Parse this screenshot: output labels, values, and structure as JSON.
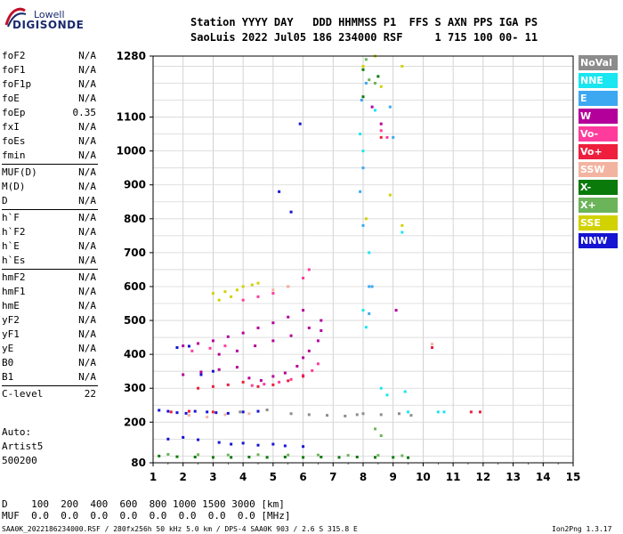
{
  "logo": {
    "line1": "Lowell",
    "line2": "DIGISONDE"
  },
  "header": {
    "line1": "Station YYYY DAY   DDD HHMMSS P1  FFS S AXN PPS IGA PS",
    "line2": "SaoLuis 2022 Jul05 186 234000 RSF     1 715 100 00- 11"
  },
  "params": [
    {
      "name": "foF2",
      "value": "N/A"
    },
    {
      "name": "foF1",
      "value": "N/A"
    },
    {
      "name": "foF1p",
      "value": "N/A"
    },
    {
      "name": "foE",
      "value": "N/A"
    },
    {
      "name": "foEp",
      "value": "0.35"
    },
    {
      "name": "fxI",
      "value": "N/A"
    },
    {
      "name": "foEs",
      "value": "N/A"
    },
    {
      "name": "fmin",
      "value": "N/A"
    },
    {
      "name": "MUF(D)",
      "value": "N/A",
      "sep": true
    },
    {
      "name": "M(D)",
      "value": "N/A"
    },
    {
      "name": "D",
      "value": "N/A"
    },
    {
      "name": "h`F",
      "value": "N/A",
      "sep": true
    },
    {
      "name": "h`F2",
      "value": "N/A"
    },
    {
      "name": "h`E",
      "value": "N/A"
    },
    {
      "name": "h`Es",
      "value": "N/A"
    },
    {
      "name": "hmF2",
      "value": "N/A",
      "sep": true
    },
    {
      "name": "hmF1",
      "value": "N/A"
    },
    {
      "name": "hmE",
      "value": "N/A"
    },
    {
      "name": "yF2",
      "value": "N/A"
    },
    {
      "name": "yF1",
      "value": "N/A"
    },
    {
      "name": "yE",
      "value": "N/A"
    },
    {
      "name": "B0",
      "value": "N/A"
    },
    {
      "name": "B1",
      "value": "N/A"
    },
    {
      "name": "C-level",
      "value": "22",
      "sep": true
    }
  ],
  "auto": {
    "line1": "Auto:",
    "line2": "Artist5",
    "line3": "500200"
  },
  "legend": [
    {
      "label": "NoVal",
      "color": "#8c8c8c"
    },
    {
      "label": "NNE",
      "color": "#19e6f0"
    },
    {
      "label": "E",
      "color": "#3ca8f2"
    },
    {
      "label": "W",
      "color": "#b4009a"
    },
    {
      "label": "Vo-",
      "color": "#ff3c9c"
    },
    {
      "label": "Vo+",
      "color": "#ee1e3c"
    },
    {
      "label": "SSW",
      "color": "#f2b4a0"
    },
    {
      "label": "X-",
      "color": "#0a7a0a"
    },
    {
      "label": "X+",
      "color": "#6cb45a"
    },
    {
      "label": "SSE",
      "color": "#d2d200"
    },
    {
      "label": "NNW",
      "color": "#1414d2"
    }
  ],
  "table": {
    "row1": "D    100  200  400  600  800 1000 1500 3000 [km]",
    "row2": "MUF  0.0  0.0  0.0  0.0  0.0  0.0  0.0  0.0 [MHz]"
  },
  "footer": {
    "left": "SAA0K_2022186234000.RSF / 280fx256h 50 kHz 5.0 km / DPS-4 SAA0K 903 / 2.6 S 315.8 E",
    "right": "Ion2Png 1.3.17"
  },
  "chart_data": {
    "type": "scatter",
    "title": "",
    "xlabel": "",
    "ylabel": "",
    "xlim": [
      1,
      15
    ],
    "ylim": [
      80,
      1280
    ],
    "x_ticks": [
      1,
      2,
      3,
      4,
      5,
      6,
      7,
      8,
      9,
      10,
      11,
      12,
      13,
      14,
      15
    ],
    "y_ticks": [
      80,
      200,
      300,
      400,
      500,
      600,
      700,
      800,
      900,
      1000,
      1100,
      1280
    ],
    "grid": true,
    "legend_position": "right",
    "series": [
      {
        "name": "NNW",
        "color": "#1414d2",
        "points": [
          [
            1.2,
            235
          ],
          [
            1.5,
            232
          ],
          [
            1.8,
            228
          ],
          [
            2.1,
            226
          ],
          [
            2.4,
            232
          ],
          [
            2.8,
            230
          ],
          [
            3.1,
            228
          ],
          [
            3.5,
            226
          ],
          [
            4.0,
            230
          ],
          [
            4.5,
            232
          ],
          [
            1.5,
            150
          ],
          [
            2.0,
            155
          ],
          [
            2.5,
            148
          ],
          [
            3.2,
            140
          ],
          [
            3.6,
            135
          ],
          [
            4.0,
            138
          ],
          [
            4.5,
            132
          ],
          [
            5.0,
            135
          ],
          [
            5.4,
            130
          ],
          [
            6.0,
            128
          ],
          [
            1.8,
            420
          ],
          [
            2.2,
            424
          ],
          [
            2.6,
            340
          ],
          [
            3.0,
            350
          ],
          [
            5.2,
            880
          ],
          [
            5.6,
            820
          ],
          [
            5.9,
            1080
          ]
        ]
      },
      {
        "name": "W",
        "color": "#b4009a",
        "points": [
          [
            2.0,
            425
          ],
          [
            2.5,
            432
          ],
          [
            3.0,
            440
          ],
          [
            3.5,
            452
          ],
          [
            4.0,
            463
          ],
          [
            4.5,
            478
          ],
          [
            5.0,
            493
          ],
          [
            5.5,
            510
          ],
          [
            6.0,
            530
          ],
          [
            2.0,
            340
          ],
          [
            2.6,
            348
          ],
          [
            3.2,
            355
          ],
          [
            3.8,
            362
          ],
          [
            4.2,
            330
          ],
          [
            4.6,
            323
          ],
          [
            5.0,
            335
          ],
          [
            5.4,
            345
          ],
          [
            5.8,
            365
          ],
          [
            6.0,
            390
          ],
          [
            6.2,
            410
          ],
          [
            6.5,
            440
          ],
          [
            6.6,
            470
          ],
          [
            6.6,
            500
          ],
          [
            3.2,
            400
          ],
          [
            3.8,
            410
          ],
          [
            4.4,
            425
          ],
          [
            5.0,
            440
          ],
          [
            5.6,
            455
          ],
          [
            6.2,
            478
          ],
          [
            8.6,
            1080
          ],
          [
            8.3,
            1130
          ],
          [
            9.1,
            530
          ]
        ]
      },
      {
        "name": "Vo-",
        "color": "#ff3c9c",
        "points": [
          [
            4.3,
            308
          ],
          [
            4.7,
            312
          ],
          [
            5.2,
            318
          ],
          [
            5.6,
            326
          ],
          [
            6.0,
            338
          ],
          [
            6.3,
            352
          ],
          [
            6.5,
            372
          ],
          [
            2.3,
            410
          ],
          [
            2.9,
            418
          ],
          [
            3.4,
            425
          ],
          [
            4.0,
            560
          ],
          [
            4.5,
            570
          ],
          [
            5.0,
            580
          ],
          [
            5.5,
            600
          ],
          [
            6.0,
            625
          ],
          [
            6.2,
            650
          ],
          [
            8.8,
            1040
          ],
          [
            8.6,
            1060
          ]
        ]
      },
      {
        "name": "Vo+",
        "color": "#ee1e3c",
        "points": [
          [
            2.5,
            300
          ],
          [
            3.0,
            305
          ],
          [
            3.5,
            310
          ],
          [
            4.0,
            318
          ],
          [
            4.5,
            305
          ],
          [
            5.0,
            310
          ],
          [
            5.5,
            322
          ],
          [
            6.0,
            335
          ],
          [
            1.6,
            230
          ],
          [
            2.2,
            232
          ],
          [
            3.0,
            230
          ],
          [
            11.6,
            230
          ],
          [
            11.9,
            230
          ],
          [
            8.6,
            1040
          ],
          [
            10.3,
            420
          ]
        ]
      },
      {
        "name": "SSE",
        "color": "#d2d200",
        "points": [
          [
            3.0,
            580
          ],
          [
            3.4,
            585
          ],
          [
            3.8,
            590
          ],
          [
            4.0,
            600
          ],
          [
            4.3,
            605
          ],
          [
            4.5,
            610
          ],
          [
            3.2,
            560
          ],
          [
            3.6,
            570
          ],
          [
            8.4,
            1280
          ],
          [
            8.0,
            1250
          ],
          [
            8.6,
            1190
          ],
          [
            9.3,
            1250
          ],
          [
            8.1,
            800
          ],
          [
            9.3,
            780
          ],
          [
            8.9,
            870
          ]
        ]
      },
      {
        "name": "NNE",
        "color": "#19e6f0",
        "points": [
          [
            8.0,
            530
          ],
          [
            8.1,
            480
          ],
          [
            8.2,
            700
          ],
          [
            7.9,
            1050
          ],
          [
            8.0,
            1000
          ],
          [
            8.4,
            1120
          ],
          [
            9.3,
            760
          ],
          [
            9.5,
            230
          ],
          [
            10.5,
            230
          ],
          [
            10.7,
            230
          ],
          [
            8.6,
            300
          ],
          [
            8.8,
            280
          ],
          [
            9.4,
            290
          ]
        ]
      },
      {
        "name": "E",
        "color": "#3ca8f2",
        "points": [
          [
            7.9,
            880
          ],
          [
            8.0,
            950
          ],
          [
            7.95,
            1150
          ],
          [
            8.1,
            1200
          ],
          [
            8.0,
            780
          ],
          [
            8.2,
            600
          ],
          [
            8.3,
            600
          ],
          [
            9.0,
            1040
          ],
          [
            8.9,
            1130
          ],
          [
            8.2,
            520
          ]
        ]
      },
      {
        "name": "X-",
        "color": "#0a7a0a",
        "points": [
          [
            1.2,
            100
          ],
          [
            1.8,
            98
          ],
          [
            2.4,
            97
          ],
          [
            3.0,
            96
          ],
          [
            3.6,
            96
          ],
          [
            4.2,
            97
          ],
          [
            4.8,
            96
          ],
          [
            5.4,
            97
          ],
          [
            6.0,
            96
          ],
          [
            6.6,
            97
          ],
          [
            7.2,
            96
          ],
          [
            7.8,
            97
          ],
          [
            8.4,
            96
          ],
          [
            9.0,
            96
          ],
          [
            9.5,
            95
          ],
          [
            8.0,
            1240
          ],
          [
            8.0,
            1160
          ],
          [
            8.5,
            1220
          ]
        ]
      },
      {
        "name": "X+",
        "color": "#6cb45a",
        "points": [
          [
            1.5,
            105
          ],
          [
            2.5,
            104
          ],
          [
            3.5,
            103
          ],
          [
            4.5,
            104
          ],
          [
            5.5,
            103
          ],
          [
            6.5,
            103
          ],
          [
            7.5,
            102
          ],
          [
            8.5,
            102
          ],
          [
            9.3,
            101
          ],
          [
            8.4,
            180
          ],
          [
            8.6,
            160
          ],
          [
            8.1,
            1270
          ],
          [
            8.2,
            1210
          ],
          [
            8.4,
            1200
          ]
        ]
      },
      {
        "name": "SSW",
        "color": "#f2b4a0",
        "points": [
          [
            2.2,
            220
          ],
          [
            2.8,
            215
          ],
          [
            3.4,
            222
          ],
          [
            4.2,
            225
          ],
          [
            10.3,
            430
          ],
          [
            5.0,
            590
          ],
          [
            5.5,
            600
          ]
        ]
      },
      {
        "name": "NoVal",
        "color": "#8c8c8c",
        "points": [
          [
            5.6,
            225
          ],
          [
            6.2,
            222
          ],
          [
            6.8,
            220
          ],
          [
            7.4,
            218
          ],
          [
            7.8,
            222
          ],
          [
            8.0,
            225
          ],
          [
            8.6,
            222
          ],
          [
            9.2,
            225
          ],
          [
            9.6,
            220
          ],
          [
            3.9,
            230
          ],
          [
            4.8,
            236
          ]
        ]
      }
    ]
  }
}
